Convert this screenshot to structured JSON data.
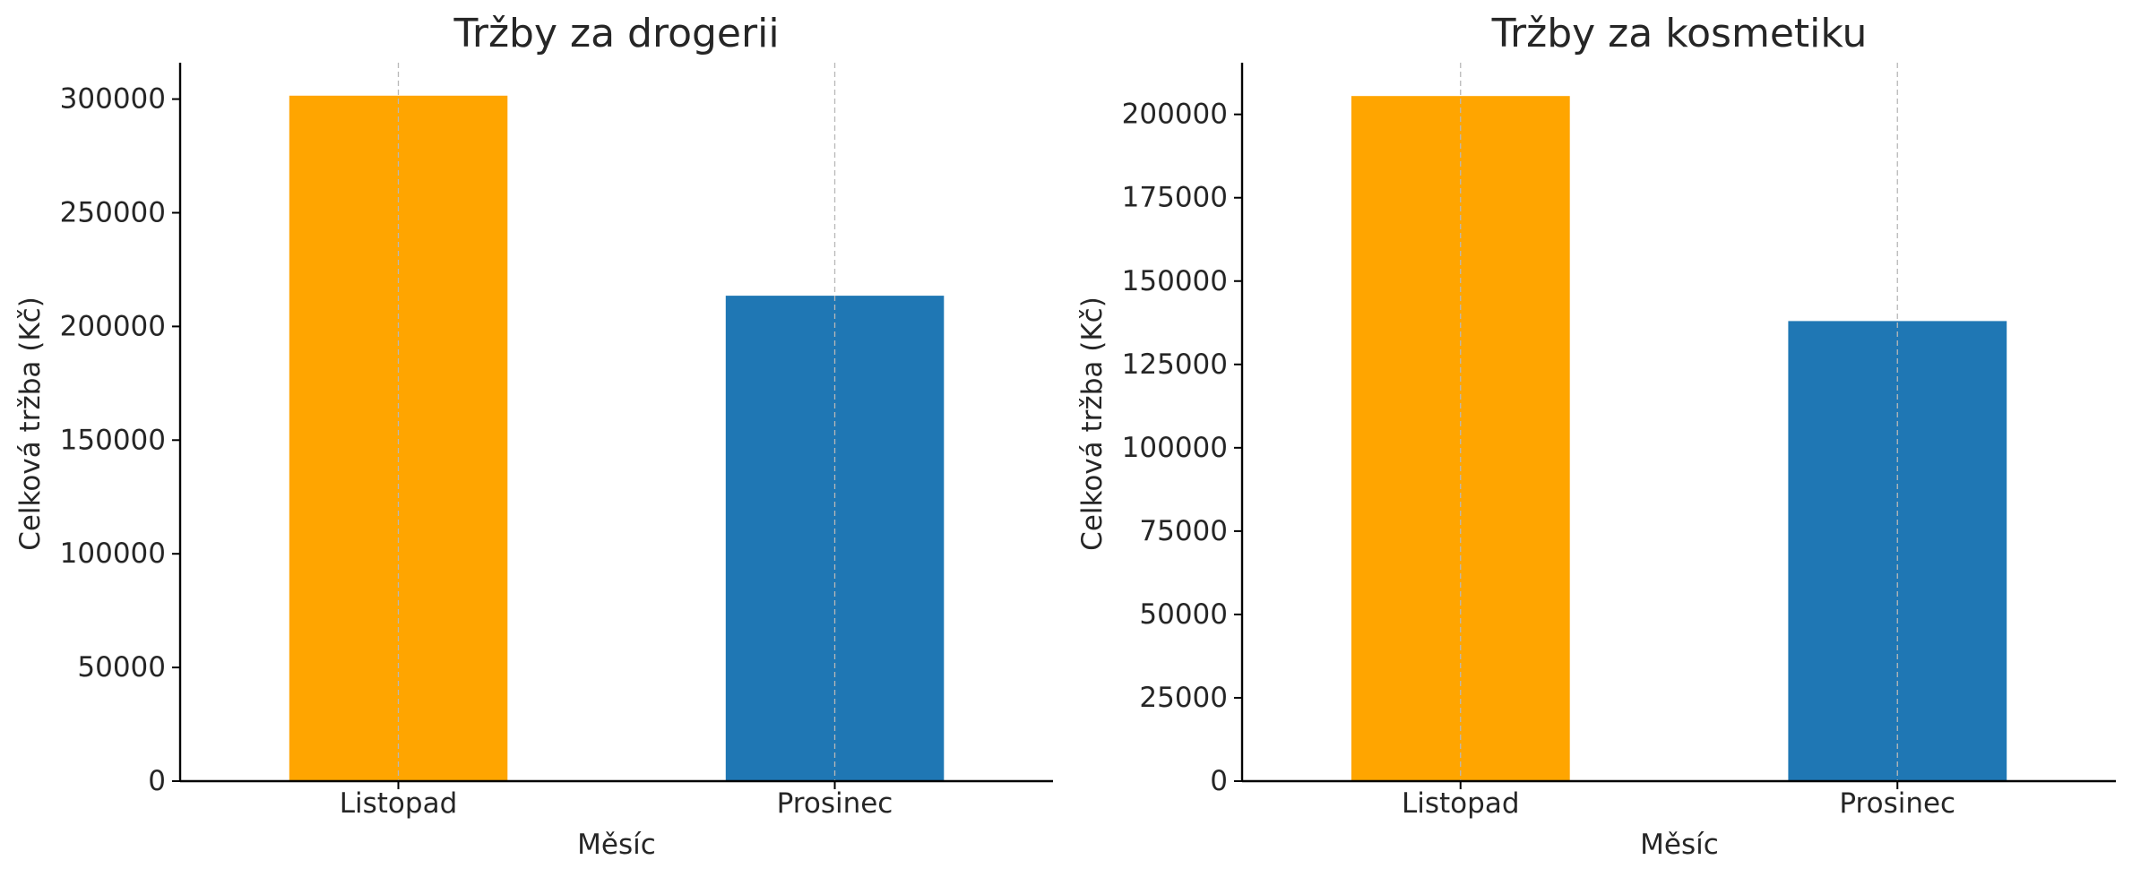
{
  "chart_data": [
    {
      "type": "bar",
      "title": "Tržby za drogerii",
      "xlabel": "Měsíc",
      "ylabel": "Celková tržba (Kč)",
      "categories": [
        "Listopad",
        "Prosinec"
      ],
      "values": [
        301500,
        213500
      ],
      "bar_colors": [
        "#FFA500",
        "#1F77B4"
      ],
      "ylim": [
        0,
        316000
      ],
      "yticks": [
        0,
        50000,
        100000,
        150000,
        200000,
        250000,
        300000
      ],
      "ytick_labels": [
        "0",
        "50000",
        "100000",
        "150000",
        "200000",
        "250000",
        "300000"
      ],
      "grid": "vertical dashed"
    },
    {
      "type": "bar",
      "title": "Tržby za kosmetiku",
      "xlabel": "Měsíc",
      "ylabel": "Celková tržba (Kč)",
      "categories": [
        "Listopad",
        "Prosinec"
      ],
      "values": [
        205500,
        138000
      ],
      "bar_colors": [
        "#FFA500",
        "#1F77B4"
      ],
      "ylim": [
        0,
        215500
      ],
      "yticks": [
        0,
        25000,
        50000,
        75000,
        100000,
        125000,
        150000,
        175000,
        200000
      ],
      "ytick_labels": [
        "0",
        "25000",
        "50000",
        "75000",
        "100000",
        "125000",
        "150000",
        "175000",
        "200000"
      ],
      "grid": "vertical dashed"
    }
  ]
}
